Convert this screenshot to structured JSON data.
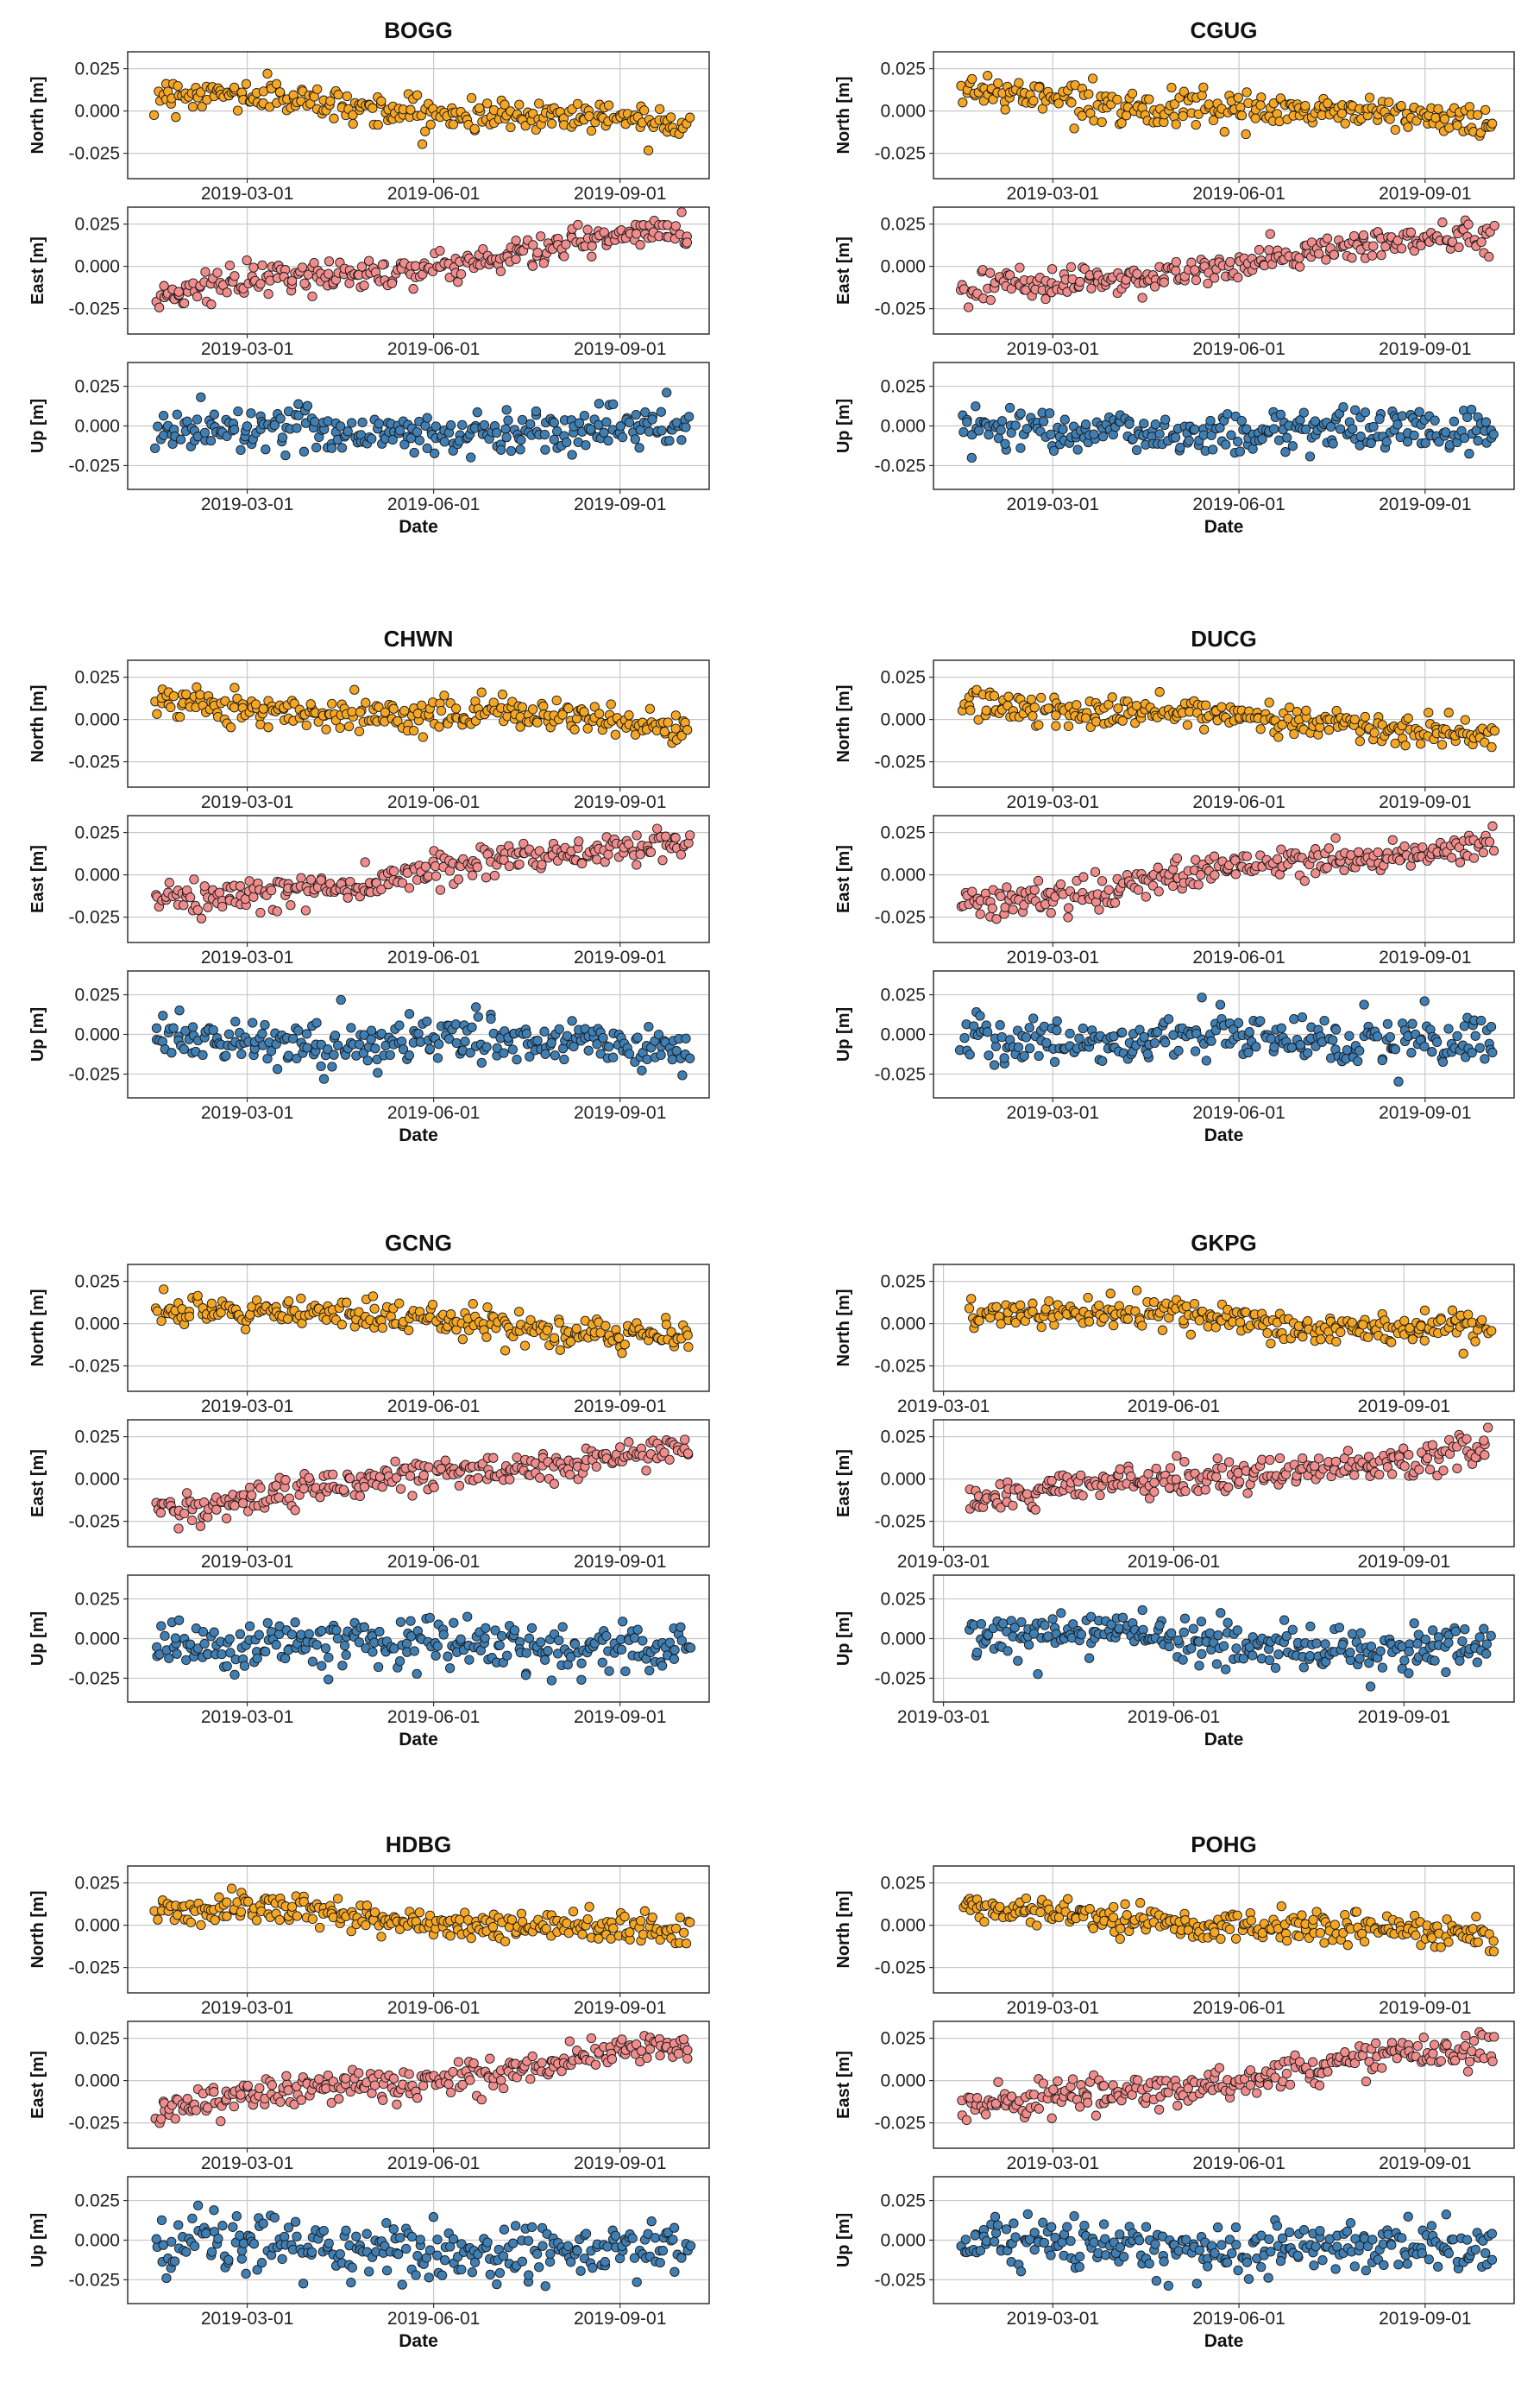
{
  "colors": {
    "north": "#f5a623",
    "east": "#f08c8c",
    "up": "#3f7fb4"
  },
  "chart_data": [
    {
      "type": "scatter",
      "title": "BOGG",
      "xlabel": "Date",
      "xlim": [
        "2019-01-01",
        "2019-10-15"
      ],
      "xticks": [
        "2019-03-01",
        "2019-06-01",
        "2019-09-01"
      ],
      "panels": [
        {
          "name": "north",
          "ylabel": "North [m]",
          "ylim": [
            -0.04,
            0.035
          ],
          "yticks": [
            "0.025",
            "0.000",
            "-0.025"
          ],
          "trend_start": 0.01,
          "trend_end": -0.008,
          "noise": 0.0045
        },
        {
          "name": "east",
          "ylabel": "East [m]",
          "ylim": [
            -0.04,
            0.035
          ],
          "yticks": [
            "0.025",
            "0.000",
            "-0.025"
          ],
          "trend_start": -0.018,
          "trend_end": 0.02,
          "noise": 0.0045
        },
        {
          "name": "up",
          "ylabel": "Up [m]",
          "ylim": [
            -0.04,
            0.04
          ],
          "yticks": [
            "0.025",
            "0.000",
            "-0.025"
          ],
          "trend_start": -0.003,
          "trend_end": -0.003,
          "noise": 0.007
        }
      ]
    },
    {
      "type": "scatter",
      "title": "CGUG",
      "xlabel": "Date",
      "xlim": [
        "2019-01-01",
        "2019-10-15"
      ],
      "xticks": [
        "2019-03-01",
        "2019-06-01",
        "2019-09-01"
      ],
      "panels": [
        {
          "name": "north",
          "ylabel": "North [m]",
          "ylim": [
            -0.04,
            0.035
          ],
          "yticks": [
            "0.025",
            "0.000",
            "-0.025"
          ],
          "trend_start": 0.01,
          "trend_end": -0.007,
          "noise": 0.0045
        },
        {
          "name": "east",
          "ylabel": "East [m]",
          "ylim": [
            -0.04,
            0.035
          ],
          "yticks": [
            "0.025",
            "0.000",
            "-0.025"
          ],
          "trend_start": -0.017,
          "trend_end": 0.019,
          "noise": 0.0045
        },
        {
          "name": "up",
          "ylabel": "Up [m]",
          "ylim": [
            -0.04,
            0.04
          ],
          "yticks": [
            "0.025",
            "0.000",
            "-0.025"
          ],
          "trend_start": -0.002,
          "trend_end": -0.004,
          "noise": 0.0065
        }
      ]
    },
    {
      "type": "scatter",
      "title": "CHWN",
      "xlabel": "Date",
      "xlim": [
        "2019-01-01",
        "2019-10-15"
      ],
      "xticks": [
        "2019-03-01",
        "2019-06-01",
        "2019-09-01"
      ],
      "panels": [
        {
          "name": "north",
          "ylabel": "North [m]",
          "ylim": [
            -0.04,
            0.035
          ],
          "yticks": [
            "0.025",
            "0.000",
            "-0.025"
          ],
          "trend_start": 0.01,
          "trend_end": -0.003,
          "noise": 0.0045
        },
        {
          "name": "east",
          "ylabel": "East [m]",
          "ylim": [
            -0.04,
            0.035
          ],
          "yticks": [
            "0.025",
            "0.000",
            "-0.025"
          ],
          "trend_start": -0.018,
          "trend_end": 0.021,
          "noise": 0.0045
        },
        {
          "name": "up",
          "ylabel": "Up [m]",
          "ylim": [
            -0.04,
            0.04
          ],
          "yticks": [
            "0.025",
            "0.000",
            "-0.025"
          ],
          "trend_start": -0.002,
          "trend_end": -0.008,
          "noise": 0.0075
        }
      ]
    },
    {
      "type": "scatter",
      "title": "DUCG",
      "xlabel": "Date",
      "xlim": [
        "2019-01-01",
        "2019-10-15"
      ],
      "xticks": [
        "2019-03-01",
        "2019-06-01",
        "2019-09-01"
      ],
      "panels": [
        {
          "name": "north",
          "ylabel": "North [m]",
          "ylim": [
            -0.04,
            0.035
          ],
          "yticks": [
            "0.025",
            "0.000",
            "-0.025"
          ],
          "trend_start": 0.01,
          "trend_end": -0.008,
          "noise": 0.0045
        },
        {
          "name": "east",
          "ylabel": "East [m]",
          "ylim": [
            -0.04,
            0.035
          ],
          "yticks": [
            "0.025",
            "0.000",
            "-0.025"
          ],
          "trend_start": -0.017,
          "trend_end": 0.02,
          "noise": 0.0045
        },
        {
          "name": "up",
          "ylabel": "Up [m]",
          "ylim": [
            -0.04,
            0.04
          ],
          "yticks": [
            "0.025",
            "0.000",
            "-0.025"
          ],
          "trend_start": -0.002,
          "trend_end": -0.004,
          "noise": 0.0075
        }
      ]
    },
    {
      "type": "scatter",
      "title": "GCNG",
      "xlabel": "Date",
      "xlim": [
        "2019-01-01",
        "2019-10-15"
      ],
      "xticks": [
        "2019-03-01",
        "2019-06-01",
        "2019-09-01"
      ],
      "panels": [
        {
          "name": "north",
          "ylabel": "North [m]",
          "ylim": [
            -0.04,
            0.035
          ],
          "yticks": [
            "0.025",
            "0.000",
            "-0.025"
          ],
          "trend_start": 0.01,
          "trend_end": -0.007,
          "noise": 0.0045
        },
        {
          "name": "east",
          "ylabel": "East [m]",
          "ylim": [
            -0.04,
            0.035
          ],
          "yticks": [
            "0.025",
            "0.000",
            "-0.025"
          ],
          "trend_start": -0.017,
          "trend_end": 0.019,
          "noise": 0.0045
        },
        {
          "name": "up",
          "ylabel": "Up [m]",
          "ylim": [
            -0.04,
            0.04
          ],
          "yticks": [
            "0.025",
            "0.000",
            "-0.025"
          ],
          "trend_start": -0.003,
          "trend_end": -0.006,
          "noise": 0.0075
        }
      ]
    },
    {
      "type": "scatter",
      "title": "GKPG",
      "xlabel": "Date",
      "xlim": [
        "2019-02-25",
        "2019-10-15"
      ],
      "xticks": [
        "2019-03-01",
        "2019-06-01",
        "2019-09-01"
      ],
      "panels": [
        {
          "name": "north",
          "ylabel": "North [m]",
          "ylim": [
            -0.04,
            0.035
          ],
          "yticks": [
            "0.025",
            "0.000",
            "-0.025"
          ],
          "trend_start": 0.008,
          "trend_end": -0.005,
          "noise": 0.0045
        },
        {
          "name": "east",
          "ylabel": "East [m]",
          "ylim": [
            -0.04,
            0.035
          ],
          "yticks": [
            "0.025",
            "0.000",
            "-0.025"
          ],
          "trend_start": -0.012,
          "trend_end": 0.016,
          "noise": 0.0045
        },
        {
          "name": "up",
          "ylabel": "Up [m]",
          "ylim": [
            -0.04,
            0.04
          ],
          "yticks": [
            "0.025",
            "0.000",
            "-0.025"
          ],
          "trend_start": 0.004,
          "trend_end": -0.007,
          "noise": 0.0075
        }
      ]
    },
    {
      "type": "scatter",
      "title": "HDBG",
      "xlabel": "Date",
      "xlim": [
        "2019-01-01",
        "2019-10-15"
      ],
      "xticks": [
        "2019-03-01",
        "2019-06-01",
        "2019-09-01"
      ],
      "panels": [
        {
          "name": "north",
          "ylabel": "North [m]",
          "ylim": [
            -0.04,
            0.035
          ],
          "yticks": [
            "0.025",
            "0.000",
            "-0.025"
          ],
          "trend_start": 0.01,
          "trend_end": -0.006,
          "noise": 0.0045
        },
        {
          "name": "east",
          "ylabel": "East [m]",
          "ylim": [
            -0.04,
            0.035
          ],
          "yticks": [
            "0.025",
            "0.000",
            "-0.025"
          ],
          "trend_start": -0.017,
          "trend_end": 0.019,
          "noise": 0.0045
        },
        {
          "name": "up",
          "ylabel": "Up [m]",
          "ylim": [
            -0.04,
            0.04
          ],
          "yticks": [
            "0.025",
            "0.000",
            "-0.025"
          ],
          "trend_start": -0.004,
          "trend_end": -0.008,
          "noise": 0.0085
        }
      ]
    },
    {
      "type": "scatter",
      "title": "POHG",
      "xlabel": "Date",
      "xlim": [
        "2019-01-01",
        "2019-10-15"
      ],
      "xticks": [
        "2019-03-01",
        "2019-06-01",
        "2019-09-01"
      ],
      "panels": [
        {
          "name": "north",
          "ylabel": "North [m]",
          "ylim": [
            -0.04,
            0.035
          ],
          "yticks": [
            "0.025",
            "0.000",
            "-0.025"
          ],
          "trend_start": 0.009,
          "trend_end": -0.007,
          "noise": 0.0045
        },
        {
          "name": "east",
          "ylabel": "East [m]",
          "ylim": [
            -0.04,
            0.035
          ],
          "yticks": [
            "0.025",
            "0.000",
            "-0.025"
          ],
          "trend_start": -0.017,
          "trend_end": 0.019,
          "noise": 0.0045
        },
        {
          "name": "up",
          "ylabel": "Up [m]",
          "ylim": [
            -0.04,
            0.04
          ],
          "yticks": [
            "0.025",
            "0.000",
            "-0.025"
          ],
          "trend_start": -0.002,
          "trend_end": -0.006,
          "noise": 0.0075
        }
      ]
    }
  ]
}
